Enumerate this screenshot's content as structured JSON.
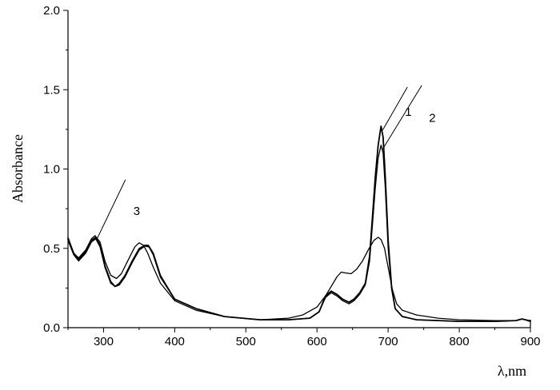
{
  "chart_data": {
    "type": "line",
    "xlabel": "λ,nm",
    "ylabel": "Absorbance",
    "xlim": [
      250,
      900
    ],
    "ylim": [
      0.0,
      2.0
    ],
    "x_ticks": [
      300,
      400,
      500,
      600,
      700,
      800,
      900
    ],
    "y_ticks": [
      "0.0",
      "0.5",
      "1.0",
      "1.5",
      "2.0"
    ],
    "grid": false,
    "series": [
      {
        "name": "1",
        "x": [
          250,
          258,
          265,
          275,
          283,
          289,
          295,
          302,
          310,
          316,
          322,
          330,
          340,
          350,
          358,
          364,
          370,
          380,
          400,
          430,
          470,
          520,
          560,
          590,
          603,
          612,
          620,
          628,
          636,
          645,
          652,
          660,
          668,
          674,
          678,
          682,
          686,
          690,
          693,
          696,
          700,
          705,
          710,
          720,
          740,
          770,
          800,
          850,
          880,
          888,
          893,
          900
        ],
        "y": [
          0.56,
          0.47,
          0.43,
          0.48,
          0.55,
          0.57,
          0.52,
          0.39,
          0.29,
          0.26,
          0.27,
          0.32,
          0.41,
          0.49,
          0.515,
          0.51,
          0.46,
          0.32,
          0.18,
          0.12,
          0.07,
          0.05,
          0.05,
          0.06,
          0.1,
          0.2,
          0.23,
          0.21,
          0.18,
          0.16,
          0.18,
          0.22,
          0.28,
          0.45,
          0.7,
          0.95,
          1.15,
          1.27,
          1.2,
          0.95,
          0.55,
          0.25,
          0.12,
          0.07,
          0.05,
          0.045,
          0.04,
          0.04,
          0.045,
          0.055,
          0.05,
          0.04
        ]
      },
      {
        "name": "2",
        "x": [
          250,
          258,
          265,
          275,
          283,
          289,
          295,
          302,
          310,
          316,
          322,
          330,
          340,
          350,
          358,
          363,
          370,
          380,
          400,
          430,
          470,
          520,
          560,
          590,
          603,
          612,
          620,
          628,
          636,
          645,
          652,
          660,
          668,
          674,
          678,
          682,
          686,
          690,
          693,
          696,
          700,
          705,
          710,
          720,
          740,
          770,
          800,
          850,
          880,
          888,
          893,
          900
        ],
        "y": [
          0.55,
          0.46,
          0.42,
          0.47,
          0.54,
          0.56,
          0.51,
          0.38,
          0.28,
          0.26,
          0.28,
          0.33,
          0.42,
          0.5,
          0.52,
          0.52,
          0.47,
          0.33,
          0.18,
          0.12,
          0.07,
          0.05,
          0.05,
          0.06,
          0.1,
          0.19,
          0.22,
          0.2,
          0.17,
          0.15,
          0.17,
          0.21,
          0.27,
          0.42,
          0.65,
          0.88,
          1.07,
          1.15,
          1.1,
          0.88,
          0.5,
          0.24,
          0.12,
          0.07,
          0.05,
          0.045,
          0.04,
          0.04,
          0.045,
          0.055,
          0.05,
          0.04
        ]
      },
      {
        "name": "3",
        "x": [
          250,
          258,
          265,
          275,
          283,
          288,
          295,
          302,
          310,
          318,
          325,
          335,
          344,
          350,
          356,
          362,
          370,
          380,
          400,
          430,
          470,
          520,
          560,
          580,
          600,
          612,
          620,
          628,
          634,
          640,
          648,
          656,
          664,
          672,
          680,
          686,
          690,
          695,
          700,
          706,
          712,
          720,
          740,
          770,
          800,
          850,
          880,
          888,
          893,
          900
        ],
        "y": [
          0.57,
          0.47,
          0.44,
          0.49,
          0.56,
          0.58,
          0.54,
          0.42,
          0.33,
          0.31,
          0.34,
          0.43,
          0.51,
          0.535,
          0.52,
          0.47,
          0.38,
          0.28,
          0.17,
          0.11,
          0.07,
          0.05,
          0.06,
          0.08,
          0.13,
          0.2,
          0.26,
          0.32,
          0.35,
          0.345,
          0.34,
          0.37,
          0.42,
          0.49,
          0.55,
          0.57,
          0.555,
          0.5,
          0.38,
          0.24,
          0.15,
          0.11,
          0.08,
          0.06,
          0.05,
          0.045,
          0.045,
          0.055,
          0.05,
          0.045
        ]
      }
    ]
  }
}
